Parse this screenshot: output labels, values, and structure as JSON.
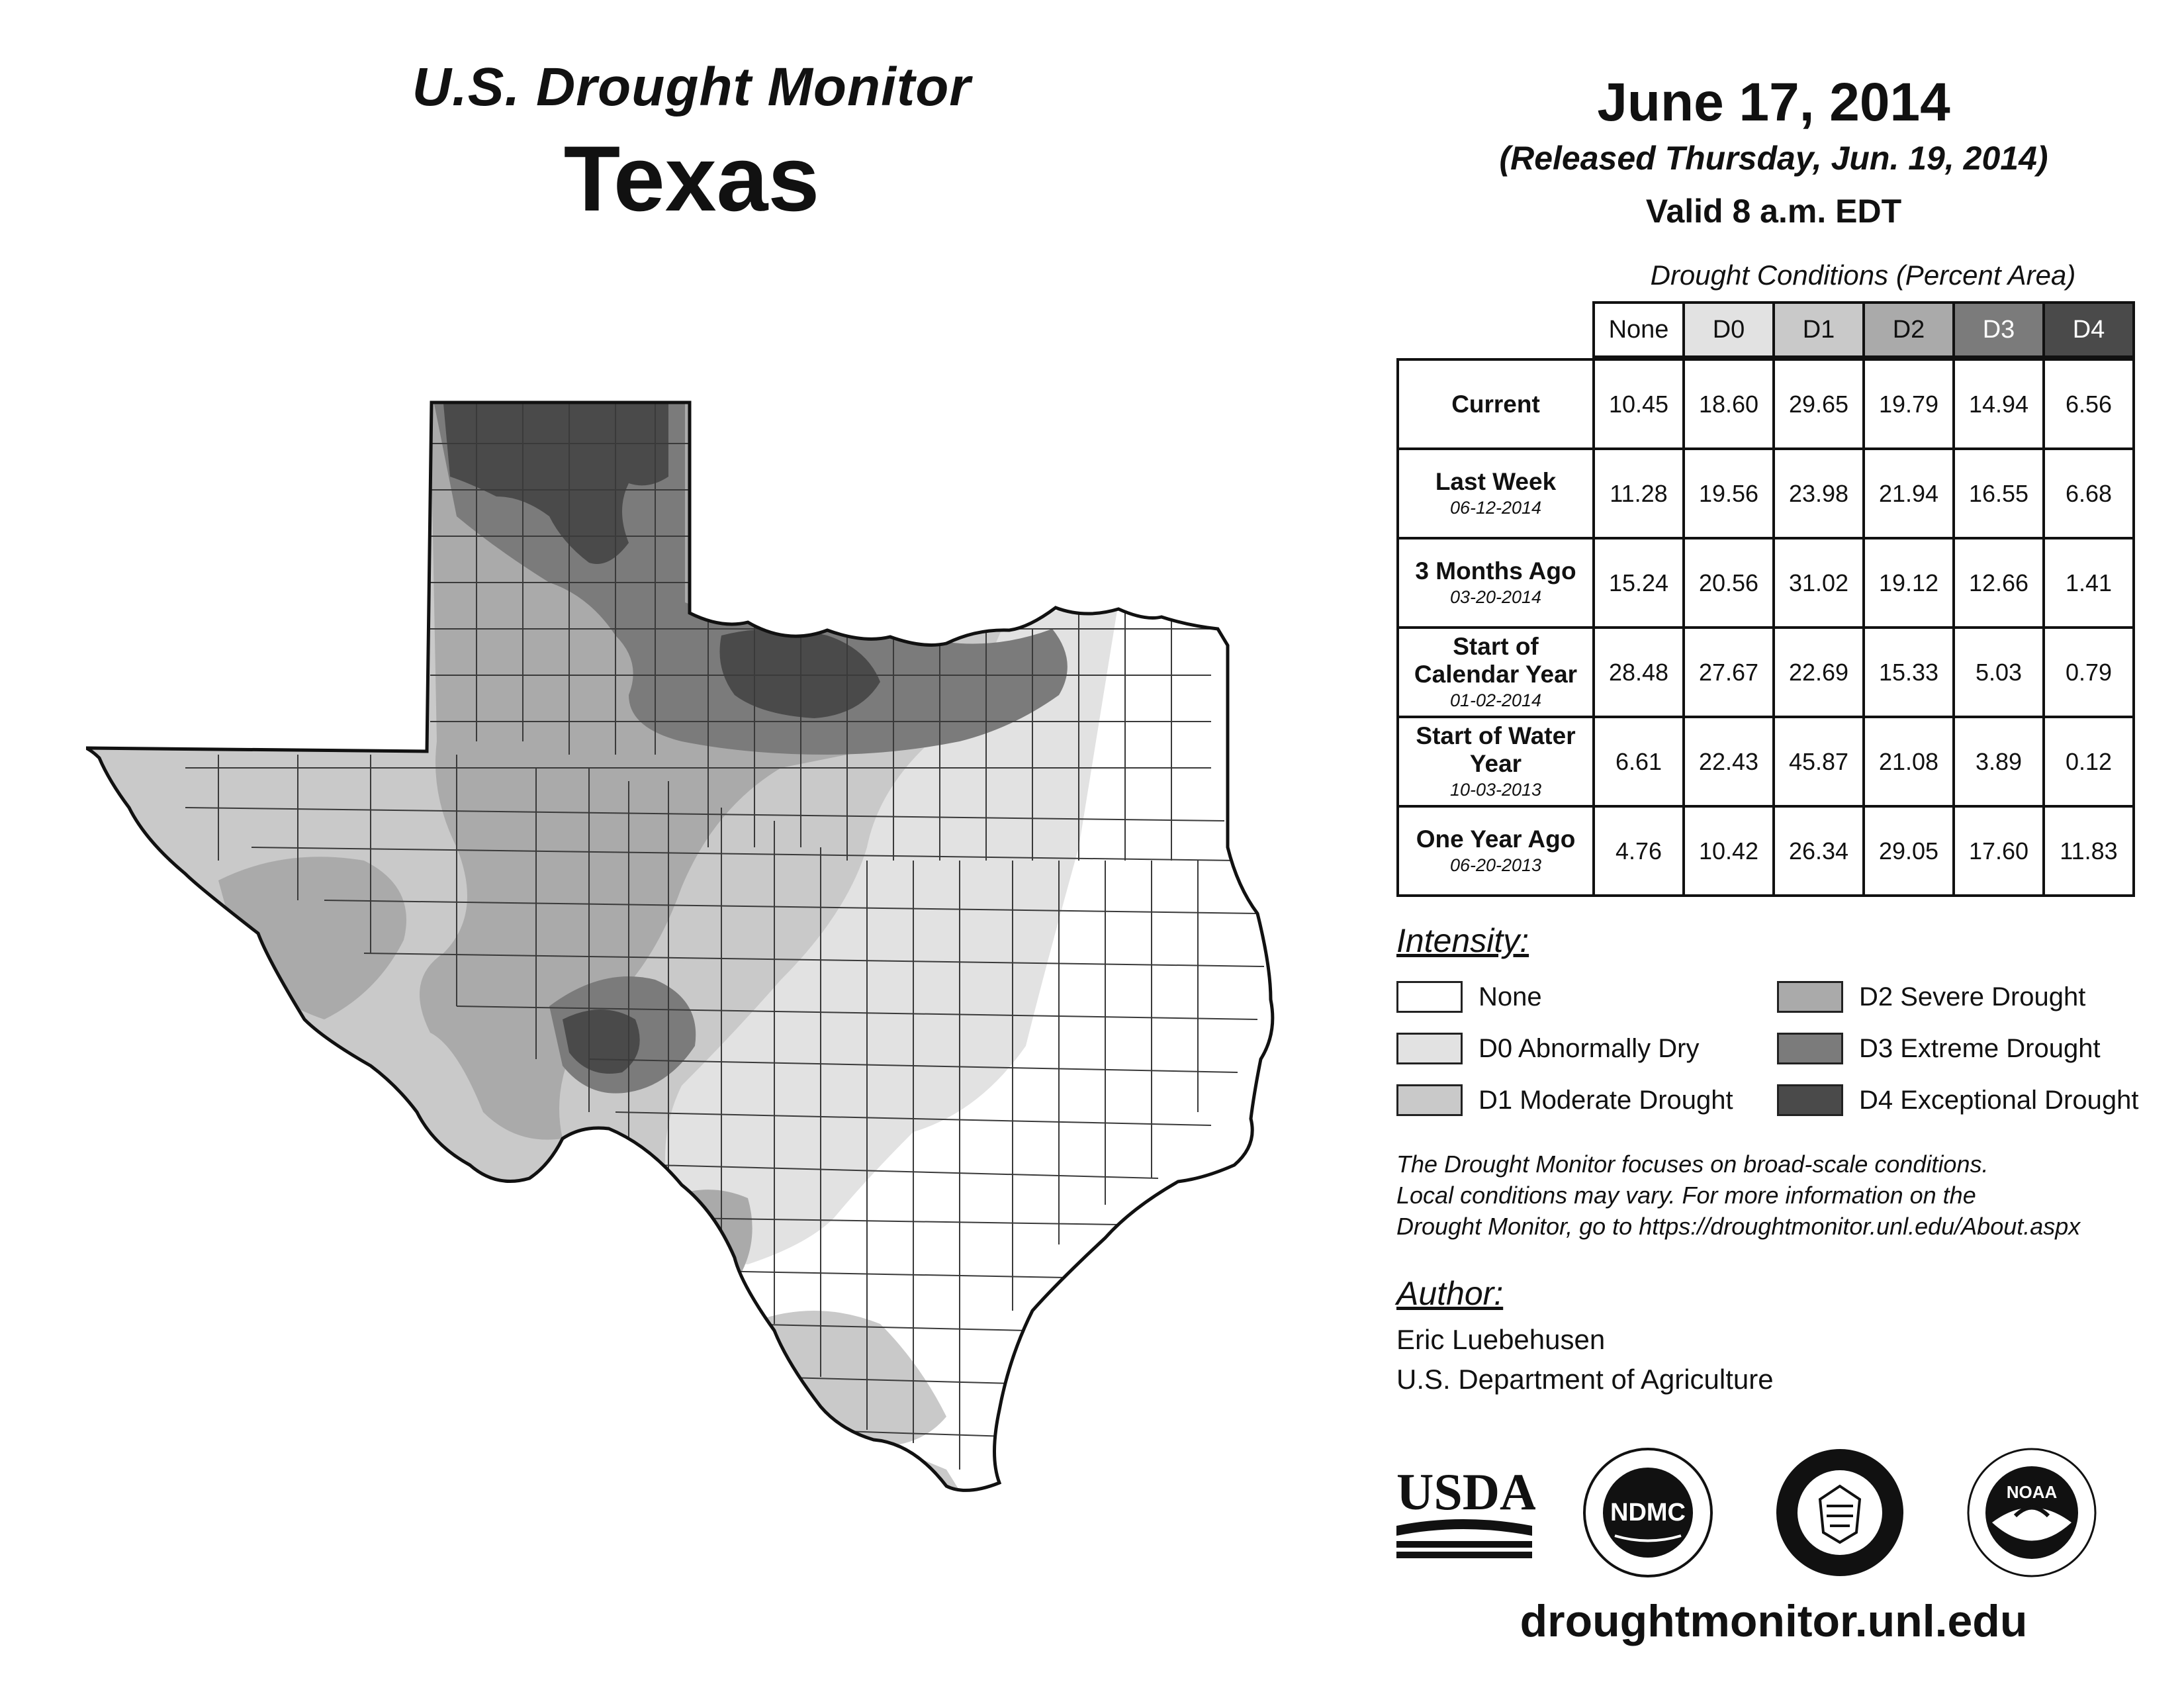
{
  "header": {
    "subtitle": "U.S. Drought Monitor",
    "state": "Texas",
    "date": "June 17, 2014",
    "released": "(Released Thursday, Jun. 19, 2014)",
    "valid": "Valid 8 a.m. EDT"
  },
  "table": {
    "title": "Drought Conditions (Percent Area)",
    "columns": [
      "None",
      "D0",
      "D1",
      "D2",
      "D3",
      "D4"
    ],
    "rows": [
      {
        "label": "Current",
        "date": "",
        "values": [
          "10.45",
          "18.60",
          "29.65",
          "19.79",
          "14.94",
          "6.56"
        ]
      },
      {
        "label": "Last Week",
        "date": "06-12-2014",
        "values": [
          "11.28",
          "19.56",
          "23.98",
          "21.94",
          "16.55",
          "6.68"
        ]
      },
      {
        "label": "3 Months Ago",
        "date": "03-20-2014",
        "values": [
          "15.24",
          "20.56",
          "31.02",
          "19.12",
          "12.66",
          "1.41"
        ]
      },
      {
        "label": "Start of Calendar Year",
        "date": "01-02-2014",
        "values": [
          "28.48",
          "27.67",
          "22.69",
          "15.33",
          "5.03",
          "0.79"
        ]
      },
      {
        "label": "Start of Water Year",
        "date": "10-03-2013",
        "values": [
          "6.61",
          "22.43",
          "45.87",
          "21.08",
          "3.89",
          "0.12"
        ]
      },
      {
        "label": "One Year Ago",
        "date": "06-20-2013",
        "values": [
          "4.76",
          "10.42",
          "26.34",
          "29.05",
          "17.60",
          "11.83"
        ]
      }
    ]
  },
  "legend": {
    "title": "Intensity:",
    "items": [
      {
        "label": "None",
        "color": "#ffffff"
      },
      {
        "label": "D0 Abnormally Dry",
        "color": "#e2e2e2"
      },
      {
        "label": "D1 Moderate Drought",
        "color": "#c9c9c9"
      },
      {
        "label": "D2 Severe Drought",
        "color": "#aaaaaa"
      },
      {
        "label": "D3 Extreme Drought",
        "color": "#7b7b7b"
      },
      {
        "label": "D4 Exceptional Drought",
        "color": "#4a4a4a"
      }
    ]
  },
  "note": {
    "line1": "The Drought Monitor focuses on broad-scale conditions.",
    "line2": "Local conditions may vary. For more information on the",
    "line3": "Drought Monitor, go to https://droughtmonitor.unl.edu/About.aspx"
  },
  "author": {
    "title": "Author:",
    "name": "Eric Luebehusen",
    "org": "U.S. Department of Agriculture"
  },
  "logos": {
    "usda": "USDA",
    "ndmc": "NDMC",
    "noaa": "NOAA"
  },
  "site": "droughtmonitor.unl.edu"
}
